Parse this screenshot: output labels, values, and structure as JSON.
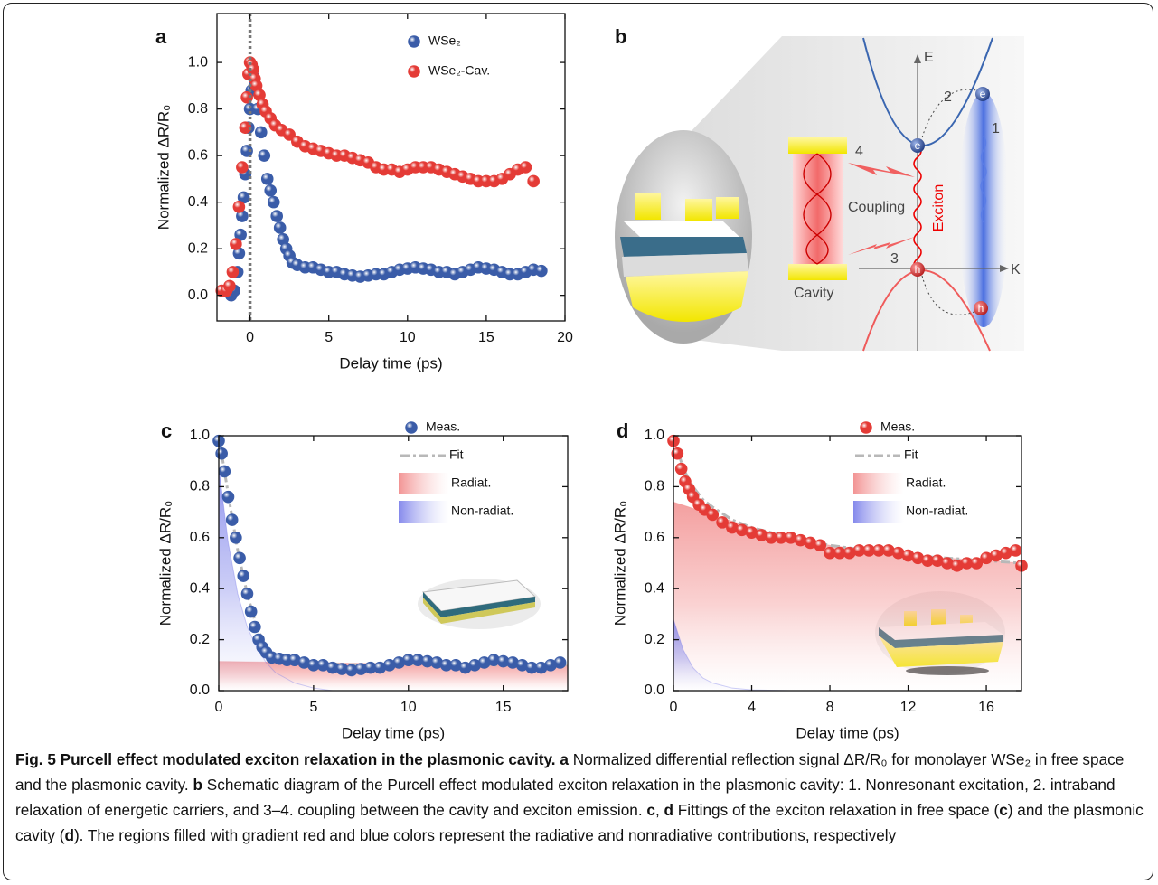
{
  "chart_data": [
    {
      "type": "scatter",
      "panel": "a",
      "xlabel": "Delay time (ps)",
      "ylabel": "Normalized ΔR/R₀",
      "xlim": [
        -2.1,
        20
      ],
      "ylim": [
        -0.11,
        1.21
      ],
      "xticks": [
        0,
        5,
        10,
        15,
        20
      ],
      "yticks": [
        {
          "value": 0,
          "label": "0.0"
        },
        0.2,
        0.4,
        0.6,
        0.8,
        {
          "value": 1,
          "label": "1.0"
        }
      ],
      "vline": 0,
      "legend": "upper right",
      "grid": false,
      "series": [
        {
          "name": "WSe₂",
          "color": "#3a5ca8",
          "style": "points",
          "x": [
            -1.2,
            -1.0,
            -0.8,
            -0.7,
            -0.6,
            -0.5,
            -0.4,
            -0.3,
            -0.2,
            -0.1,
            0,
            0.1,
            0.2,
            0.3,
            0.5,
            0.7,
            0.9,
            1.1,
            1.3,
            1.5,
            1.7,
            1.9,
            2.1,
            2.3,
            2.5,
            2.7,
            3,
            3.5,
            4,
            4.5,
            5,
            5.5,
            6,
            6.5,
            7,
            7.5,
            8,
            8.5,
            9,
            9.5,
            10,
            10.5,
            11,
            11.5,
            12,
            12.5,
            13,
            13.5,
            14,
            14.5,
            15,
            15.5,
            16,
            16.5,
            17,
            17.5,
            18,
            18.5
          ],
          "values": [
            0.0,
            0.02,
            0.1,
            0.18,
            0.26,
            0.34,
            0.42,
            0.52,
            0.62,
            0.72,
            0.8,
            0.88,
            0.94,
            0.9,
            0.8,
            0.7,
            0.6,
            0.5,
            0.45,
            0.4,
            0.34,
            0.29,
            0.24,
            0.2,
            0.17,
            0.14,
            0.13,
            0.12,
            0.12,
            0.11,
            0.1,
            0.1,
            0.09,
            0.085,
            0.08,
            0.085,
            0.09,
            0.09,
            0.1,
            0.11,
            0.115,
            0.12,
            0.115,
            0.11,
            0.1,
            0.1,
            0.09,
            0.1,
            0.11,
            0.12,
            0.115,
            0.11,
            0.1,
            0.09,
            0.09,
            0.1,
            0.11,
            0.105
          ]
        },
        {
          "name": "WSe₂-Cav.",
          "color": "#e43b36",
          "style": "points",
          "x": [
            -1.8,
            -1.5,
            -1.3,
            -1.1,
            -0.9,
            -0.7,
            -0.5,
            -0.3,
            -0.2,
            -0.1,
            0,
            0.1,
            0.2,
            0.3,
            0.4,
            0.6,
            0.8,
            1,
            1.3,
            1.6,
            2,
            2.5,
            3,
            3.5,
            4,
            4.5,
            5,
            5.5,
            6,
            6.5,
            7,
            7.5,
            8,
            8.5,
            9,
            9.5,
            10,
            10.5,
            11,
            11.5,
            12,
            12.5,
            13,
            13.5,
            14,
            14.5,
            15,
            15.5,
            16,
            16.5,
            17,
            17.5,
            18
          ],
          "values": [
            0.02,
            0.02,
            0.04,
            0.1,
            0.22,
            0.38,
            0.55,
            0.72,
            0.85,
            0.95,
            1.0,
            0.99,
            0.97,
            0.93,
            0.9,
            0.86,
            0.82,
            0.79,
            0.76,
            0.73,
            0.71,
            0.69,
            0.66,
            0.64,
            0.63,
            0.62,
            0.61,
            0.6,
            0.6,
            0.59,
            0.58,
            0.57,
            0.55,
            0.54,
            0.54,
            0.53,
            0.54,
            0.55,
            0.55,
            0.55,
            0.54,
            0.53,
            0.52,
            0.51,
            0.5,
            0.49,
            0.49,
            0.49,
            0.5,
            0.52,
            0.54,
            0.55,
            0.49
          ]
        }
      ]
    },
    {
      "type": "scatter",
      "panel": "c",
      "xlabel": "Delay time (ps)",
      "ylabel": "Normalized ΔR/R₀",
      "xlim": [
        0,
        18.4
      ],
      "ylim": [
        0,
        1
      ],
      "xticks": [
        0,
        5,
        10,
        15
      ],
      "yticks": [
        {
          "value": 0,
          "label": "0.0"
        },
        0.2,
        0.4,
        0.6,
        0.8,
        {
          "value": 1,
          "label": "1.0"
        }
      ],
      "legend": "upper right",
      "grid": false,
      "series": [
        {
          "name": "Meas.",
          "color": "#3a5ca8",
          "style": "points",
          "x": [
            0,
            0.15,
            0.3,
            0.5,
            0.7,
            0.9,
            1.1,
            1.3,
            1.5,
            1.7,
            1.9,
            2.1,
            2.3,
            2.5,
            2.8,
            3.2,
            3.6,
            4,
            4.5,
            5,
            5.5,
            6,
            6.5,
            7,
            7.5,
            8,
            8.5,
            9,
            9.5,
            10,
            10.5,
            11,
            11.5,
            12,
            12.5,
            13,
            13.5,
            14,
            14.5,
            15,
            15.5,
            16,
            16.5,
            17,
            17.5,
            18
          ],
          "values": [
            0.98,
            0.93,
            0.86,
            0.76,
            0.67,
            0.6,
            0.52,
            0.45,
            0.38,
            0.31,
            0.25,
            0.2,
            0.17,
            0.15,
            0.13,
            0.125,
            0.12,
            0.12,
            0.11,
            0.1,
            0.1,
            0.09,
            0.085,
            0.08,
            0.085,
            0.09,
            0.09,
            0.1,
            0.11,
            0.12,
            0.12,
            0.115,
            0.11,
            0.1,
            0.1,
            0.09,
            0.1,
            0.11,
            0.12,
            0.115,
            0.11,
            0.1,
            0.09,
            0.09,
            0.1,
            0.11
          ]
        },
        {
          "name": "Fit",
          "color": "#b8b8b8",
          "style": "dashdot",
          "x": [
            0,
            0.5,
            1,
            1.5,
            2,
            2.5,
            3,
            4,
            5,
            6,
            8,
            10,
            12,
            14,
            16,
            18.4
          ],
          "values": [
            1.0,
            0.77,
            0.55,
            0.38,
            0.25,
            0.17,
            0.14,
            0.12,
            0.11,
            0.105,
            0.1,
            0.105,
            0.105,
            0.1,
            0.1,
            0.1
          ]
        },
        {
          "name": "Radiat.",
          "color": "#f08080",
          "style": "area",
          "x": [
            0,
            5,
            10,
            15,
            18.4
          ],
          "values": [
            0.115,
            0.11,
            0.105,
            0.1,
            0.1
          ]
        },
        {
          "name": "Non-radiat.",
          "color": "#6f74e8",
          "style": "area",
          "x": [
            0,
            0.5,
            1,
            1.5,
            2,
            2.5,
            3,
            4,
            5,
            6
          ],
          "values": [
            0.88,
            0.58,
            0.38,
            0.25,
            0.17,
            0.11,
            0.07,
            0.03,
            0.01,
            0.0
          ]
        }
      ]
    },
    {
      "type": "scatter",
      "panel": "d",
      "xlabel": "Delay time (ps)",
      "ylabel": "Normalized ΔR/R₀",
      "xlim": [
        0,
        17.8
      ],
      "ylim": [
        0,
        1
      ],
      "xticks": [
        0,
        4,
        8,
        12,
        16
      ],
      "yticks": [
        {
          "value": 0,
          "label": "0.0"
        },
        0.2,
        0.4,
        0.6,
        0.8,
        {
          "value": 1,
          "label": "1.0"
        }
      ],
      "legend": "upper right",
      "grid": false,
      "series": [
        {
          "name": "Meas.",
          "color": "#e43b36",
          "style": "points",
          "x": [
            0,
            0.2,
            0.4,
            0.6,
            0.8,
            1,
            1.3,
            1.6,
            2,
            2.5,
            3,
            3.5,
            4,
            4.5,
            5,
            5.5,
            6,
            6.5,
            7,
            7.5,
            8,
            8.5,
            9,
            9.5,
            10,
            10.5,
            11,
            11.5,
            12,
            12.5,
            13,
            13.5,
            14,
            14.5,
            15,
            15.5,
            16,
            16.5,
            17,
            17.5,
            17.8
          ],
          "values": [
            0.98,
            0.93,
            0.87,
            0.82,
            0.79,
            0.76,
            0.73,
            0.71,
            0.69,
            0.66,
            0.64,
            0.63,
            0.62,
            0.61,
            0.6,
            0.6,
            0.6,
            0.59,
            0.58,
            0.57,
            0.54,
            0.54,
            0.54,
            0.55,
            0.55,
            0.55,
            0.55,
            0.54,
            0.53,
            0.52,
            0.51,
            0.51,
            0.5,
            0.49,
            0.5,
            0.5,
            0.52,
            0.53,
            0.54,
            0.55,
            0.49
          ]
        },
        {
          "name": "Fit",
          "color": "#b8b8b8",
          "style": "dashdot",
          "x": [
            0,
            0.5,
            1,
            1.5,
            2,
            3,
            4,
            6,
            8,
            10,
            12,
            14,
            16,
            17.8
          ],
          "values": [
            1.0,
            0.87,
            0.8,
            0.75,
            0.72,
            0.67,
            0.64,
            0.6,
            0.57,
            0.55,
            0.53,
            0.52,
            0.51,
            0.5
          ]
        },
        {
          "name": "Radiat.",
          "color": "#f08080",
          "style": "area",
          "x": [
            0,
            2,
            4,
            6,
            8,
            10,
            12,
            14,
            16,
            17.8
          ],
          "values": [
            0.74,
            0.69,
            0.64,
            0.6,
            0.57,
            0.55,
            0.53,
            0.52,
            0.51,
            0.5
          ]
        },
        {
          "name": "Non-radiat.",
          "color": "#6f74e8",
          "style": "area",
          "x": [
            0,
            0.5,
            1,
            1.5,
            2,
            3,
            4,
            6
          ],
          "values": [
            0.28,
            0.16,
            0.09,
            0.05,
            0.03,
            0.01,
            0.003,
            0
          ]
        }
      ]
    }
  ],
  "schematic": {
    "panel": "b",
    "labels": [
      "E",
      "K",
      "e",
      "e",
      "h",
      "h",
      "1",
      "2",
      "3",
      "4",
      "Coupling",
      "Exciton",
      "Cavity"
    ]
  },
  "caption": {
    "parts": [
      "Fig. 5 Purcell effect modulated exciton relaxation in the plasmonic cavity. a",
      " Normalized differential reflection signal ΔR/R₀ for monolayer WSe₂ in free space and the plasmonic cavity. ",
      "b",
      " Schematic diagram of the Purcell effect modulated exciton relaxation in the plasmonic cavity: 1. Nonresonant excitation, 2. intraband relaxation of energetic carriers, and 3–4. coupling between the cavity and exciton emission. ",
      "c",
      ", ",
      "d",
      " Fittings of the exciton relaxation in free space (",
      "c",
      ") and the plasmonic cavity (",
      "d",
      "). The regions filled with gradient red and blue colors represent the radiative and nonradiative contributions, respectively"
    ]
  }
}
